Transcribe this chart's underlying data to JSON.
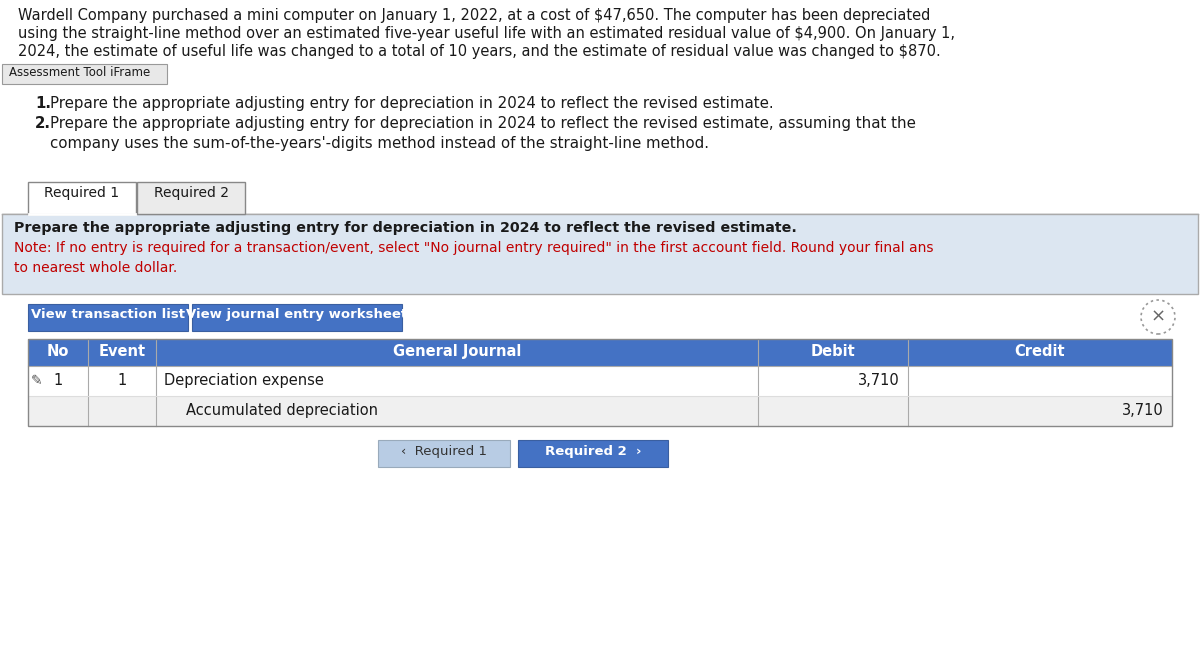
{
  "header_line1": "Wardell Company purchased a mini computer on January 1, 2022, at a cost of $47,650. The computer has been depreciated",
  "header_line2": "using the straight-line method over an estimated five-year useful life with an estimated residual value of $4,900. On January 1,",
  "header_line3": "2024, the estimate of useful life was changed to a total of 10 years, and the estimate of residual value was changed to $870.",
  "assessment_tool_label": "Assessment Tool iFrame",
  "req1_num": "1.",
  "req1_text": "Prepare the appropriate adjusting entry for depreciation in 2024 to reflect the revised estimate.",
  "req2_num": "2.",
  "req2_line1": "Prepare the appropriate adjusting entry for depreciation in 2024 to reflect the revised estimate, assuming that the",
  "req2_line2": "company uses the sum-of-the-years'-digits method instead of the straight-line method.",
  "tab1": "Required 1",
  "tab2": "Required 2",
  "blue_bold": "Prepare the appropriate adjusting entry for depreciation in 2024 to reflect the revised estimate.",
  "red_line1": "Note: If no entry is required for a transaction/event, select \"No journal entry required\" in the first account field. Round your final ans",
  "red_line2": "to nearest whole dollar.",
  "btn1": "View transaction list",
  "btn2": "View journal entry worksheet",
  "tbl_h_no": "No",
  "tbl_h_event": "Event",
  "tbl_h_gj": "General Journal",
  "tbl_h_debit": "Debit",
  "tbl_h_credit": "Credit",
  "row1_no": "1",
  "row1_event": "1",
  "row1_gj": "Depreciation expense",
  "row1_debit": "3,710",
  "row1_credit": "",
  "row2_gj": "Accumulated depreciation",
  "row2_debit": "",
  "row2_credit": "3,710",
  "nav1": "‹  Required 1",
  "nav2": "Required 2  ›",
  "bg": "#ffffff",
  "light_blue_bg": "#dce6f1",
  "tab1_bg": "#ffffff",
  "tab2_bg": "#ebebeb",
  "btn_blue": "#4472c4",
  "btn_light": "#b8cce4",
  "tbl_hdr_bg": "#4472c4",
  "tbl_hdr_fg": "#ffffff",
  "row1_bg": "#ffffff",
  "row2_bg": "#f0f0f0",
  "border": "#aaaaaa",
  "dark_border": "#888888",
  "red": "#c00000",
  "black": "#1a1a1a",
  "white": "#ffffff",
  "gray_label_bg": "#e8e8e8",
  "gray_label_border": "#999999"
}
